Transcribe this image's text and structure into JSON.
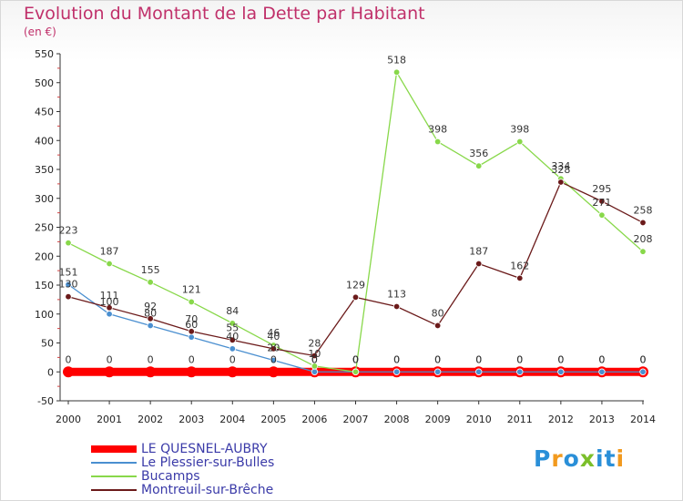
{
  "title": "Evolution du Montant de la Dette par Habitant",
  "subtitle": "(en €)",
  "logo": {
    "text": "Proxiti",
    "colors": [
      "#2a8fd8",
      "#f29a1e",
      "#2a8fd8",
      "#7bbf2a",
      "#2a8fd8",
      "#2a8fd8",
      "#f29a1e"
    ]
  },
  "chart_data": {
    "type": "line",
    "x": [
      2000,
      2001,
      2002,
      2003,
      2004,
      2005,
      2006,
      2007,
      2008,
      2009,
      2010,
      2011,
      2012,
      2013,
      2014
    ],
    "ylim": [
      -50,
      550
    ],
    "yticks": [
      -50,
      0,
      50,
      100,
      150,
      200,
      250,
      300,
      350,
      400,
      450,
      500,
      550
    ],
    "grid": false,
    "legend_position": "bottom-left",
    "series": [
      {
        "name": "LE QUESNEL-AUBRY",
        "color": "#ff0000",
        "values": [
          0,
          0,
          0,
          0,
          0,
          0,
          0,
          0,
          0,
          0,
          0,
          0,
          0,
          0,
          0
        ],
        "labels": [
          "0",
          "0",
          "0",
          "0",
          "0",
          "0",
          "0",
          "0",
          "0",
          "0",
          "0",
          "0",
          "0",
          "0",
          "0"
        ]
      },
      {
        "name": "Le Plessier-sur-Bulles",
        "color": "#4a8fd0",
        "values": [
          151,
          100,
          80,
          60,
          40,
          20,
          0,
          0,
          0,
          0,
          0,
          0,
          0,
          0,
          0
        ],
        "labels": [
          "151",
          "100",
          "80",
          "60",
          "40",
          "20",
          "0",
          "0",
          "0",
          "0",
          "0",
          "0",
          "0",
          "0",
          "0"
        ]
      },
      {
        "name": "Bucamps",
        "color": "#88d84a",
        "values": [
          223,
          187,
          155,
          121,
          84,
          46,
          10,
          0,
          518,
          398,
          356,
          398,
          334,
          271,
          208
        ],
        "labels": [
          "223",
          "187",
          "155",
          "121",
          "84",
          "46",
          "10",
          "0",
          "518",
          "398",
          "356",
          "398",
          "334",
          "271",
          "208"
        ]
      },
      {
        "name": "Montreuil-sur-Brêche",
        "color": "#6b1a1a",
        "values": [
          130,
          111,
          92,
          70,
          55,
          40,
          28,
          129,
          113,
          80,
          187,
          162,
          328,
          295,
          258
        ],
        "labels": [
          "130",
          "111",
          "92",
          "70",
          "55",
          "40",
          "28",
          "129",
          "113",
          "80",
          "187",
          "162",
          "328",
          "295",
          "258"
        ]
      }
    ]
  }
}
